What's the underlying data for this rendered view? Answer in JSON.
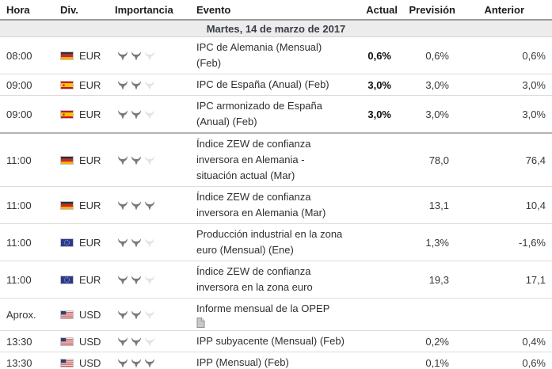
{
  "table": {
    "columns": {
      "hora": "Hora",
      "div": "Div.",
      "importancia": "Importancia",
      "evento": "Evento",
      "actual": "Actual",
      "prevision": "Previsión",
      "anterior": "Anterior"
    },
    "date_header": "Martes, 14 de marzo de 2017",
    "importance_icon": "bull-icon",
    "rows": [
      {
        "time": "08:00",
        "flag": "flag-germany",
        "currency": "EUR",
        "importance": 2,
        "event": "IPC de Alemania (Mensual)\n(Feb)",
        "actual": "0,6%",
        "forecast": "0,6%",
        "previous": "0,6%",
        "attachment": false
      },
      {
        "time": "09:00",
        "flag": "flag-spain",
        "currency": "EUR",
        "importance": 2,
        "event": "IPC de España (Anual) (Feb)",
        "actual": "3,0%",
        "forecast": "3,0%",
        "previous": "3,0%",
        "attachment": false
      },
      {
        "time": "09:00",
        "flag": "flag-spain",
        "currency": "EUR",
        "importance": 2,
        "event": "IPC armonizado de España\n(Anual) (Feb)",
        "actual": "3,0%",
        "forecast": "3,0%",
        "previous": "3,0%",
        "attachment": false,
        "group_end": true
      },
      {
        "time": "11:00",
        "flag": "flag-germany",
        "currency": "EUR",
        "importance": 2,
        "event": "Índice ZEW de confianza\ninversora en Alemania -\nsituación actual (Mar)",
        "actual": "",
        "forecast": "78,0",
        "previous": "76,4",
        "attachment": false
      },
      {
        "time": "11:00",
        "flag": "flag-germany",
        "currency": "EUR",
        "importance": 3,
        "event": "Índice ZEW de confianza\ninversora en Alemania (Mar)",
        "actual": "",
        "forecast": "13,1",
        "previous": "10,4",
        "attachment": false
      },
      {
        "time": "11:00",
        "flag": "flag-eurozone",
        "currency": "EUR",
        "importance": 2,
        "event": "Producción industrial en la zona\neuro (Mensual) (Ene)",
        "actual": "",
        "forecast": "1,3%",
        "previous": "-1,6%",
        "attachment": false
      },
      {
        "time": "11:00",
        "flag": "flag-eurozone",
        "currency": "EUR",
        "importance": 2,
        "event": "Índice ZEW de confianza\ninversora en la zona euro",
        "actual": "",
        "forecast": "19,3",
        "previous": "17,1",
        "attachment": false
      },
      {
        "time": "Aprox.",
        "flag": "flag-usa",
        "currency": "USD",
        "importance": 2,
        "event": "Informe mensual de la OPEP",
        "actual": "",
        "forecast": "",
        "previous": "",
        "attachment": true
      },
      {
        "time": "13:30",
        "flag": "flag-usa",
        "currency": "USD",
        "importance": 2,
        "event": "IPP subyacente (Mensual) (Feb)",
        "actual": "",
        "forecast": "0,2%",
        "previous": "0,4%",
        "attachment": false
      },
      {
        "time": "13:30",
        "flag": "flag-usa",
        "currency": "USD",
        "importance": 3,
        "event": "IPP (Mensual) (Feb)",
        "actual": "",
        "forecast": "0,1%",
        "previous": "0,6%",
        "attachment": false
      }
    ],
    "colors": {
      "actual_bold": "#0f0f0f",
      "text": "#333333",
      "date_row_bg": "#ececec",
      "bull_filled": "#797979",
      "bull_empty": "#e3e3e3",
      "row_border": "#dcdcdc",
      "group_border": "#b2b2b2"
    }
  }
}
